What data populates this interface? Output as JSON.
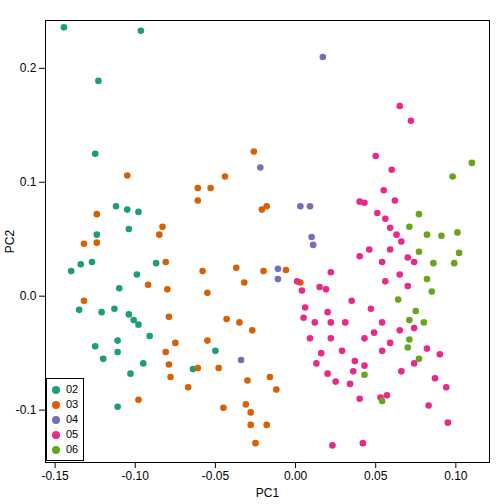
{
  "chart_data": {
    "type": "scatter",
    "xlabel": "PC1",
    "ylabel": "PC2",
    "xlim": [
      -0.156,
      0.121
    ],
    "ylim": [
      -0.146,
      0.242
    ],
    "xticks": [
      -0.15,
      {
        "value": -0.1,
        "label": "-0.10"
      },
      -0.05,
      {
        "value": 0,
        "label": "0.00"
      },
      0.05,
      {
        "value": 0.1,
        "label": "0.10"
      }
    ],
    "yticks": [
      -0.1,
      {
        "value": 0,
        "label": "0.0"
      },
      0.1,
      0.2
    ],
    "legend": "bottom-left",
    "series": [
      {
        "name": "02",
        "color": "#1B9E77",
        "x": [
          -0.1445,
          -0.0965,
          -0.123,
          -0.125,
          -0.112,
          -0.105,
          -0.098,
          -0.104,
          -0.124,
          -0.134,
          -0.14,
          -0.127,
          -0.087,
          -0.099,
          -0.11,
          -0.135,
          -0.121,
          -0.113,
          -0.104,
          -0.101,
          -0.098,
          -0.125,
          -0.111,
          -0.091,
          -0.12,
          -0.111,
          -0.103,
          -0.095,
          -0.111,
          -0.064,
          -0.05
        ],
        "y": [
          0.236,
          0.233,
          0.189,
          0.125,
          0.079,
          0.076,
          0.074,
          0.059,
          0.054,
          0.028,
          0.022,
          0.03,
          0.029,
          0.019,
          0.007,
          -0.012,
          -0.014,
          -0.011,
          -0.016,
          -0.021,
          -0.025,
          -0.044,
          -0.039,
          -0.035,
          -0.055,
          -0.049,
          -0.068,
          -0.059,
          -0.097,
          -0.064,
          -0.048
        ]
      },
      {
        "name": "03",
        "color": "#D95F02",
        "x": [
          -0.105,
          -0.124,
          -0.132,
          -0.124,
          -0.085,
          -0.083,
          -0.081,
          -0.092,
          -0.08,
          -0.061,
          -0.053,
          -0.061,
          -0.044,
          -0.026,
          -0.021,
          -0.018,
          -0.037,
          -0.032,
          -0.02,
          -0.006,
          -0.058,
          -0.055,
          -0.132,
          -0.079,
          -0.075,
          -0.081,
          -0.079,
          -0.078,
          -0.061,
          -0.055,
          -0.043,
          -0.027,
          -0.048,
          -0.03,
          -0.045,
          -0.031,
          -0.028,
          -0.016,
          -0.028,
          -0.018,
          -0.025,
          -0.012,
          -0.098,
          0.003,
          -0.067,
          -0.035
        ],
        "y": [
          0.106,
          0.072,
          0.046,
          0.047,
          0.054,
          0.061,
          0.03,
          0.01,
          0.006,
          0.095,
          0.095,
          0.084,
          0.105,
          0.127,
          0.076,
          0.079,
          0.025,
          0.012,
          0.022,
          0.023,
          0.022,
          0.003,
          -0.004,
          -0.018,
          -0.041,
          -0.049,
          -0.06,
          -0.071,
          -0.063,
          -0.039,
          -0.02,
          -0.03,
          -0.063,
          -0.074,
          -0.098,
          -0.095,
          -0.102,
          -0.071,
          -0.113,
          -0.113,
          -0.129,
          -0.082,
          -0.091,
          0.012,
          -0.08,
          -0.023
        ]
      },
      {
        "name": "04",
        "color": "#7570B3",
        "x": [
          0.017,
          -0.022,
          0.003,
          0.009,
          0.01,
          0.011,
          -0.011,
          -0.011,
          -0.034
        ],
        "y": [
          0.21,
          0.113,
          0.079,
          0.079,
          0.052,
          0.045,
          0.024,
          0.015,
          -0.056
        ]
      },
      {
        "name": "05",
        "color": "#E7298A",
        "x": [
          0.065,
          0.072,
          0.05,
          0.06,
          0.04,
          0.055,
          0.051,
          0.056,
          0.059,
          0.063,
          0.066,
          0.07,
          0.059,
          0.054,
          0.074,
          0.065,
          0.07,
          0.056,
          0.022,
          0.001,
          0.004,
          0.019,
          0.035,
          0.02,
          0.022,
          0.031,
          0.047,
          0.054,
          0.065,
          0.074,
          0.082,
          0.09,
          0.087,
          0.094,
          0.095,
          0.083,
          0.074,
          0.066,
          0.057,
          0.043,
          0.037,
          0.029,
          0.022,
          0.016,
          0.013,
          0.02,
          0.025,
          0.034,
          0.036,
          0.04,
          0.053,
          0.023,
          0.042,
          0.012,
          0.005,
          0.006,
          0.009,
          0.043,
          0.049,
          0.054,
          0.059,
          0.043,
          0.046,
          0.04,
          0.062,
          0.015
        ],
        "y": [
          0.167,
          0.154,
          0.123,
          0.111,
          0.083,
          0.093,
          0.073,
          0.068,
          0.06,
          0.054,
          0.048,
          0.034,
          0.041,
          0.03,
          0.03,
          0.019,
          0.009,
          0.013,
          0.021,
          0.013,
          0.005,
          0.006,
          -0.004,
          -0.014,
          -0.023,
          -0.023,
          -0.011,
          -0.023,
          -0.03,
          -0.028,
          -0.046,
          -0.051,
          -0.072,
          -0.08,
          -0.111,
          -0.096,
          -0.059,
          -0.066,
          -0.087,
          -0.061,
          -0.057,
          -0.048,
          -0.037,
          -0.05,
          -0.059,
          -0.068,
          -0.075,
          -0.077,
          -0.066,
          -0.09,
          -0.089,
          -0.131,
          -0.129,
          -0.023,
          -0.019,
          -0.01,
          -0.037,
          -0.037,
          -0.032,
          -0.048,
          -0.041,
          0.082,
          0.041,
          0.035,
          0.084,
          0.008
        ]
      },
      {
        "name": "06",
        "color": "#66A61E",
        "x": [
          0.11,
          0.098,
          0.077,
          0.071,
          0.082,
          0.091,
          0.101,
          0.102,
          0.099,
          0.086,
          0.082,
          0.077,
          0.085,
          0.064,
          0.071,
          0.075,
          0.08,
          0.071,
          0.07,
          0.077,
          0.054,
          0.043
        ],
        "y": [
          0.117,
          0.105,
          0.072,
          0.061,
          0.054,
          0.053,
          0.056,
          0.038,
          0.029,
          0.029,
          0.015,
          0.039,
          0.004,
          -0.003,
          -0.021,
          -0.013,
          -0.023,
          -0.038,
          -0.045,
          -0.055,
          -0.092,
          -0.069
        ]
      }
    ]
  }
}
